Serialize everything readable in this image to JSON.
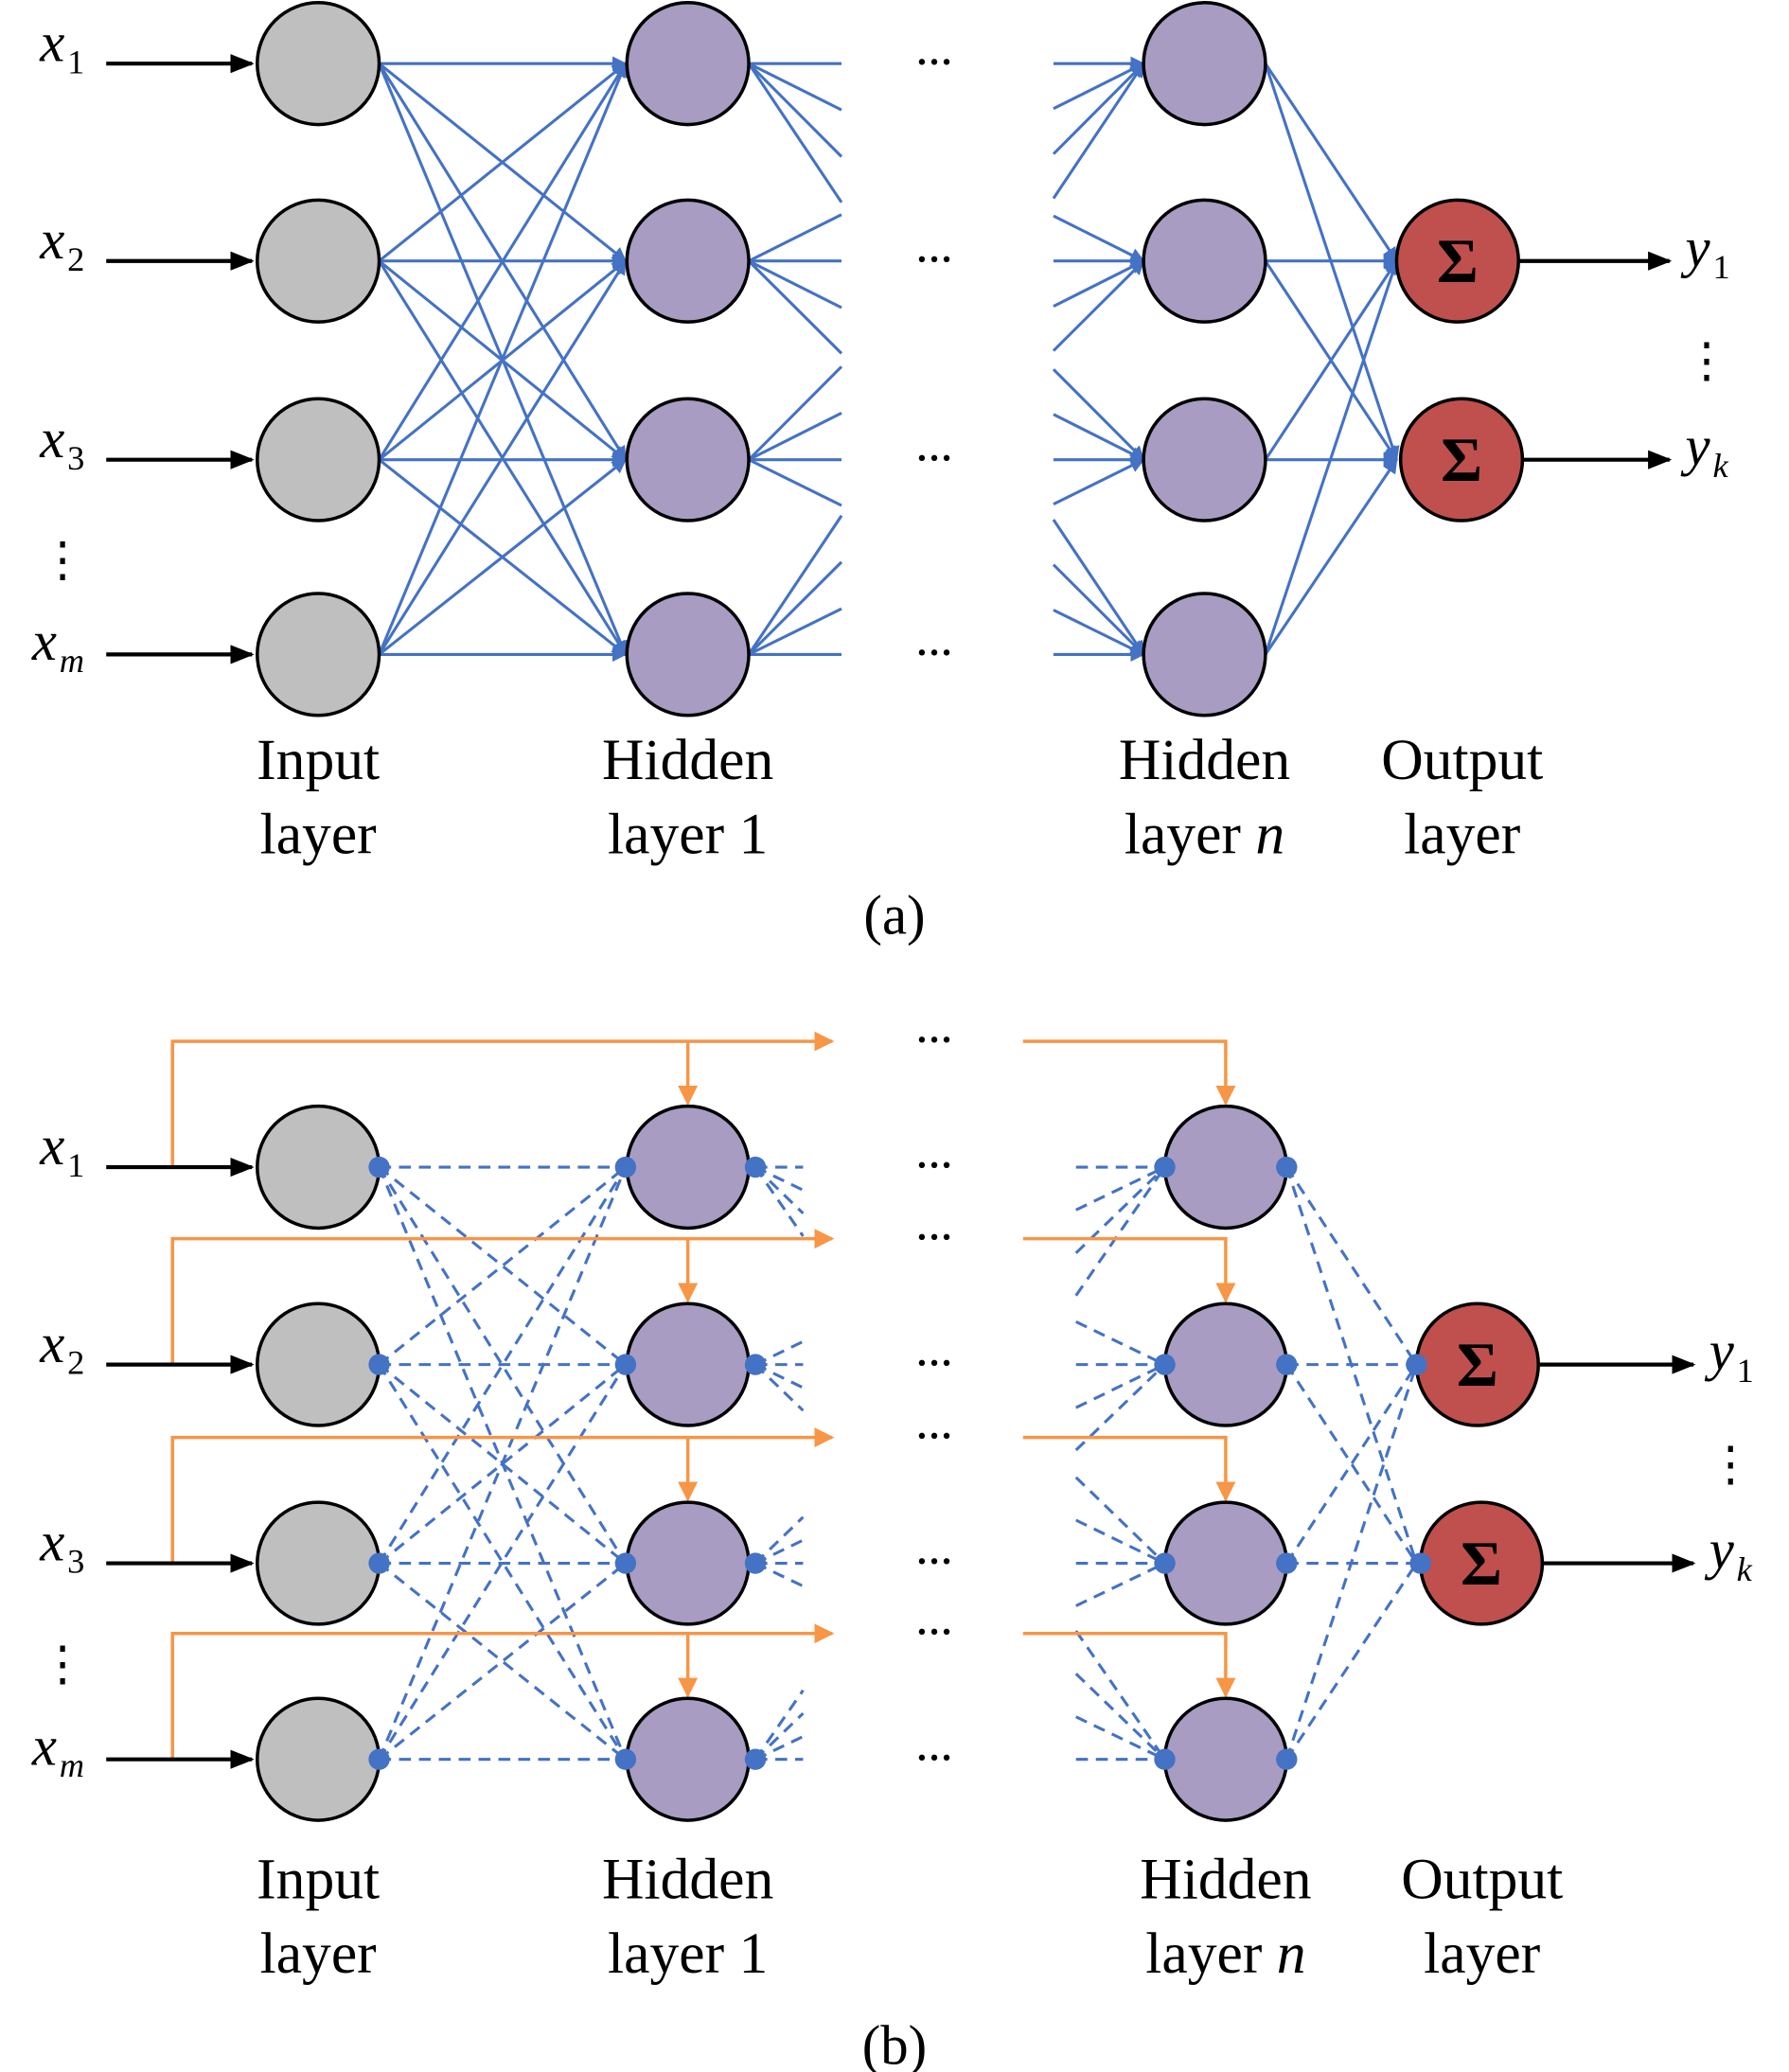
{
  "colors": {
    "input_node": "#bfbfbf",
    "hidden_node": "#a89cc2",
    "output_node": "#c0504d",
    "connection": "#4472c4",
    "shortcut": "#f79646",
    "dots_blue": "#2e75b6",
    "outline": "#000000"
  },
  "inputs": [
    {
      "base": "x",
      "sub": "1",
      "sub_italic": false
    },
    {
      "base": "x",
      "sub": "2",
      "sub_italic": false
    },
    {
      "base": "x",
      "sub": "3",
      "sub_italic": false
    },
    {
      "base": "x",
      "sub": "m",
      "sub_italic": true
    }
  ],
  "outputs": [
    {
      "base": "y",
      "sub": "1",
      "sub_italic": false
    },
    {
      "base": "y",
      "sub": "k",
      "sub_italic": true
    }
  ],
  "output_symbol": "Σ",
  "vertical_ellipsis": "⋮",
  "horizontal_ellipsis": "···",
  "layer_labels": {
    "input": [
      "Input",
      "layer"
    ],
    "hidden1": [
      "Hidden",
      "layer 1"
    ],
    "hiddenn": [
      "Hidden",
      "layer ",
      "n"
    ],
    "output": [
      "Output",
      "layer"
    ]
  },
  "panels": [
    {
      "caption": "(a)",
      "style": "fully-connected"
    },
    {
      "caption": "(b)",
      "style": "dashed-with-skip-connections"
    }
  ]
}
